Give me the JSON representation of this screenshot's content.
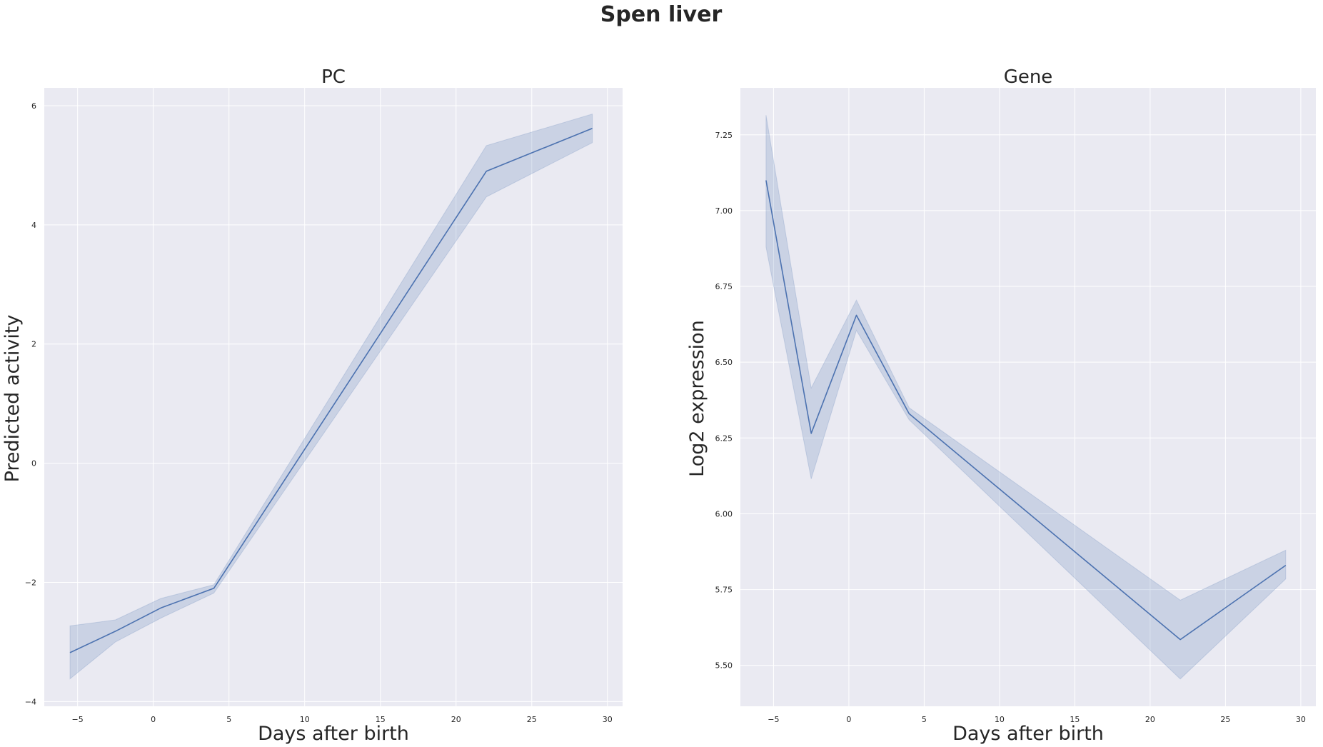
{
  "figure": {
    "title": "Spen liver"
  },
  "chart_data": [
    {
      "type": "line",
      "title": "PC",
      "xlabel": "Days after birth",
      "ylabel": "Predicted activity",
      "xlim": [
        -7.2,
        31.0
      ],
      "ylim": [
        -4.08,
        6.3
      ],
      "xticks": [
        -5,
        0,
        5,
        10,
        15,
        20,
        25,
        30
      ],
      "xtick_labels": [
        "−5",
        "0",
        "5",
        "10",
        "15",
        "20",
        "25",
        "30"
      ],
      "yticks": [
        6,
        4,
        2,
        0,
        -2,
        -4
      ],
      "ytick_labels": [
        "6",
        "4",
        "2",
        "0",
        "−2",
        "−4"
      ],
      "grid": true,
      "series": [
        {
          "x": [
            -5.5,
            -2.5,
            0.5,
            4,
            22,
            29
          ],
          "y": [
            -3.18,
            -2.82,
            -2.43,
            -2.1,
            4.9,
            5.62
          ],
          "ci_low": [
            -3.62,
            -3.0,
            -2.6,
            -2.18,
            4.47,
            5.38
          ],
          "ci_high": [
            -2.73,
            -2.63,
            -2.27,
            -2.04,
            5.33,
            5.86
          ]
        }
      ],
      "colors": {
        "line": "#4c72b0",
        "band": "#4c72b0",
        "bg": "#eaeaf2",
        "grid": "#ffffff"
      }
    },
    {
      "type": "line",
      "title": "Gene",
      "xlabel": "Days after birth",
      "ylabel": "Log2 expression",
      "xlim": [
        -7.2,
        31.0
      ],
      "ylim": [
        5.365,
        7.405
      ],
      "xticks": [
        -5,
        0,
        5,
        10,
        15,
        20,
        25,
        30
      ],
      "xtick_labels": [
        "−5",
        "0",
        "5",
        "10",
        "15",
        "20",
        "25",
        "30"
      ],
      "yticks": [
        7.25,
        7.0,
        6.75,
        6.5,
        6.25,
        6.0,
        5.75,
        5.5
      ],
      "ytick_labels": [
        "7.25",
        "7.00",
        "6.75",
        "6.50",
        "6.25",
        "6.00",
        "5.75",
        "5.50"
      ],
      "grid": true,
      "series": [
        {
          "x": [
            -5.5,
            -2.5,
            0.5,
            4,
            22,
            29
          ],
          "y": [
            7.1,
            6.265,
            6.655,
            6.33,
            5.585,
            5.83
          ],
          "ci_low": [
            6.88,
            6.115,
            6.605,
            6.31,
            5.455,
            5.785
          ],
          "ci_high": [
            7.315,
            6.415,
            6.705,
            6.35,
            5.715,
            5.88
          ]
        }
      ],
      "colors": {
        "line": "#4c72b0",
        "band": "#4c72b0",
        "bg": "#eaeaf2",
        "grid": "#ffffff"
      }
    }
  ]
}
